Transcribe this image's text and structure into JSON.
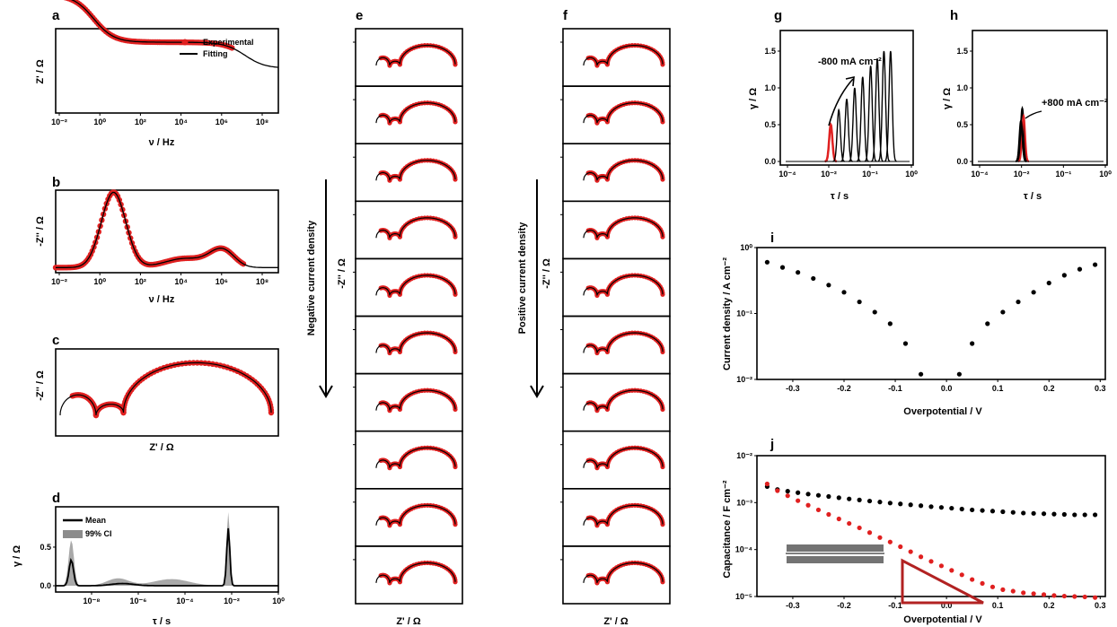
{
  "colors": {
    "experimental": "#e02020",
    "fitting": "#000000",
    "ci": "#8c8c8c",
    "triangle": "#b22222"
  },
  "panels": {
    "a": {
      "label": "a",
      "ylabel": "Z' / Ω",
      "xlabel": "ν / Hz",
      "xticks": [
        "10⁻²",
        "10⁰",
        "10²",
        "10⁴",
        "10⁶",
        "10⁸"
      ],
      "legend": [
        "Experimental",
        "Fitting"
      ]
    },
    "b": {
      "label": "b",
      "ylabel": "-Z'' / Ω",
      "xlabel": "ν / Hz",
      "xticks": [
        "10⁻²",
        "10⁰",
        "10²",
        "10⁴",
        "10⁶",
        "10⁸"
      ]
    },
    "c": {
      "label": "c",
      "ylabel": "-Z'' / Ω",
      "xlabel": "Z' / Ω"
    },
    "d": {
      "label": "d",
      "ylabel": "γ / Ω",
      "xlabel": "τ / s",
      "xticks": [
        "10⁻⁸",
        "10⁻⁶",
        "10⁻⁴",
        "10⁻²",
        "10⁰"
      ],
      "yticks": [
        "0.0",
        "0.5"
      ],
      "legend": [
        "Mean",
        "99% CI"
      ]
    },
    "e": {
      "label": "e",
      "ylabel": "-Z'' / Ω",
      "xlabel": "Z' / Ω",
      "arrow_text": "Negative current density"
    },
    "f": {
      "label": "f",
      "ylabel": "-Z'' / Ω",
      "xlabel": "Z' / Ω",
      "arrow_text": "Positive current density"
    },
    "g": {
      "label": "g",
      "ylabel": "γ / Ω",
      "xlabel": "τ / s",
      "xticks": [
        "10⁻⁴",
        "10⁻²",
        "10⁻¹",
        "10⁰"
      ],
      "yticks": [
        "0.0",
        "0.5",
        "1.0",
        "1.5"
      ],
      "annotation": "-800 mA cm⁻²"
    },
    "h": {
      "label": "h",
      "ylabel": "γ / Ω",
      "xlabel": "τ / s",
      "xticks": [
        "10⁻⁴",
        "10⁻²",
        "10⁻¹",
        "10⁰"
      ],
      "yticks": [
        "0.0",
        "0.5",
        "1.0",
        "1.5"
      ],
      "annotation": "+800 mA cm⁻²"
    },
    "i": {
      "label": "i",
      "ylabel": "Current density / A cm⁻²",
      "xlabel": "Overpotential / V",
      "xticks": [
        "-0.3",
        "-0.2",
        "-0.1",
        "0.0",
        "0.1",
        "0.2",
        "0.3"
      ],
      "yticks": [
        "10⁰",
        "10⁻¹",
        "10⁻²"
      ]
    },
    "j": {
      "label": "j",
      "ylabel": "Capacitance / F cm⁻²",
      "xlabel": "Overpotential / V",
      "xticks": [
        "-0.3",
        "-0.2",
        "-0.1",
        "0.0",
        "0.1",
        "0.2",
        "0.3"
      ],
      "yticks": [
        "10⁻²",
        "10⁻³",
        "10⁻⁴",
        "10⁻⁵"
      ]
    }
  },
  "chart_data": [
    {
      "panel": "i",
      "type": "scatter",
      "xlim": [
        -0.37,
        0.31
      ],
      "ylim_log10": [
        -2,
        0
      ],
      "series": [
        {
          "x": [
            -0.35,
            -0.32,
            -0.29,
            -0.26,
            -0.23,
            -0.2,
            -0.17,
            -0.14,
            -0.11,
            -0.08,
            -0.05,
            0.025,
            0.05,
            0.08,
            0.11,
            0.14,
            0.17,
            0.2,
            0.23,
            0.26,
            0.29
          ],
          "y": [
            0.6,
            0.5,
            0.42,
            0.34,
            0.27,
            0.21,
            0.15,
            0.105,
            0.07,
            0.035,
            0.012,
            0.012,
            0.035,
            0.07,
            0.105,
            0.15,
            0.21,
            0.29,
            0.38,
            0.47,
            0.55
          ]
        }
      ]
    },
    {
      "panel": "j",
      "type": "scatter",
      "xlim": [
        -0.37,
        0.31
      ],
      "ylim_log10": [
        -5,
        -2
      ],
      "series": [
        {
          "x": [
            -0.35,
            -0.33,
            -0.31,
            -0.29,
            -0.27,
            -0.25,
            -0.23,
            -0.21,
            -0.19,
            -0.17,
            -0.15,
            -0.13,
            -0.11,
            -0.09,
            -0.07,
            -0.05,
            -0.03,
            -0.01,
            0.01,
            0.03,
            0.05,
            0.07,
            0.09,
            0.11,
            0.13,
            0.15,
            0.17,
            0.19,
            0.21,
            0.23,
            0.25,
            0.27,
            0.29
          ],
          "y": [
            0.0022,
            0.0019,
            0.00175,
            0.00163,
            0.00152,
            0.00143,
            0.00135,
            0.00127,
            0.0012,
            0.00114,
            0.00108,
            0.00103,
            0.00098,
            0.00094,
            0.0009,
            0.00086,
            0.00082,
            0.00079,
            0.00076,
            0.00073,
            0.0007,
            0.00068,
            0.00066,
            0.00064,
            0.00062,
            0.0006,
            0.00059,
            0.00058,
            0.00057,
            0.00056,
            0.00055,
            0.00055,
            0.00055
          ]
        },
        {
          "x": [
            -0.35,
            -0.33,
            -0.31,
            -0.29,
            -0.27,
            -0.25,
            -0.23,
            -0.21,
            -0.19,
            -0.17,
            -0.15,
            -0.13,
            -0.11,
            -0.09,
            -0.07,
            -0.05,
            -0.03,
            -0.01,
            0.01,
            0.03,
            0.05,
            0.07,
            0.09,
            0.11,
            0.13,
            0.15,
            0.17,
            0.19,
            0.21,
            0.23,
            0.25,
            0.27,
            0.29
          ],
          "y": [
            0.0025,
            0.0018,
            0.0014,
            0.0011,
            0.00088,
            0.0007,
            0.00056,
            0.00045,
            0.00036,
            0.00029,
            0.00023,
            0.00018,
            0.000145,
            0.000115,
            9e-05,
            7e-05,
            5.6e-05,
            4.5e-05,
            3.6e-05,
            2.9e-05,
            2.3e-05,
            1.9e-05,
            1.6e-05,
            1.4e-05,
            1.3e-05,
            1.2e-05,
            1.15e-05,
            1.1e-05,
            1.05e-05,
            1.02e-05,
            1e-05,
            9.8e-06,
            9.5e-06
          ]
        }
      ]
    }
  ]
}
